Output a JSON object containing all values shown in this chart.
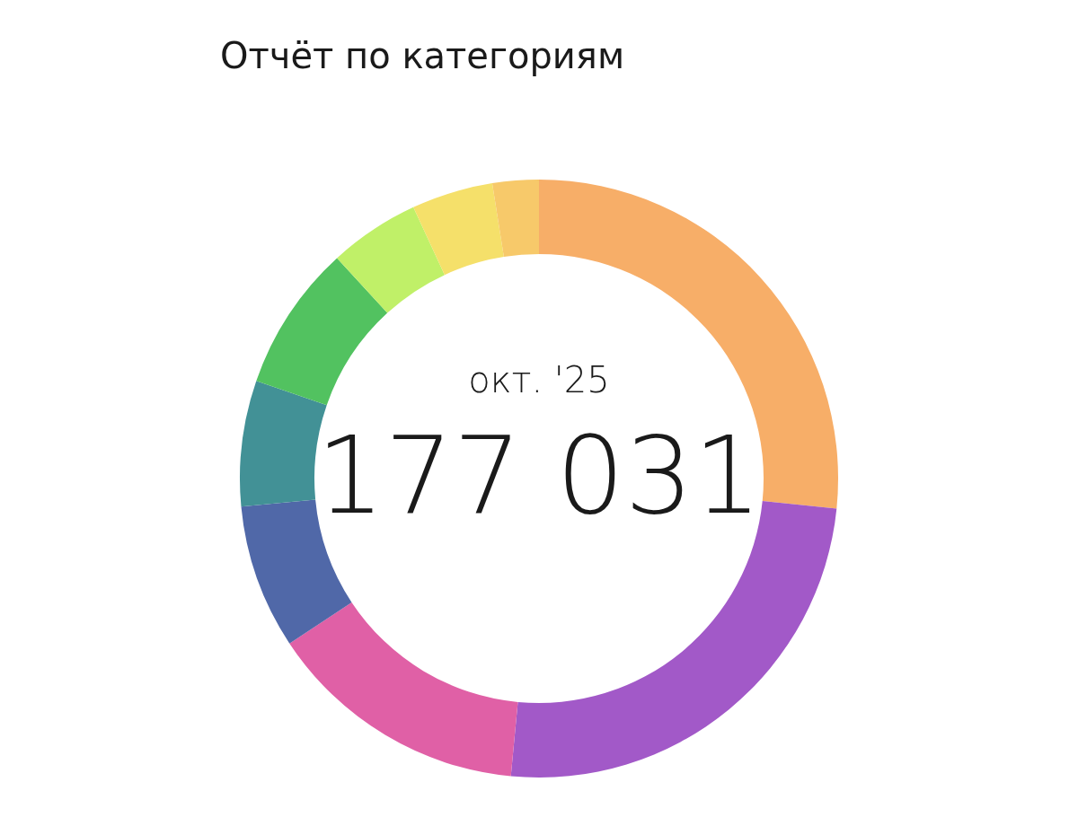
{
  "chart_data": {
    "type": "donut",
    "title": "Отчёт по категориям",
    "annotations": [
      "окт. '25",
      "177 031"
    ],
    "categories": [
      null,
      null,
      null,
      null,
      null,
      null,
      null,
      null,
      null
    ],
    "values": [
      26.6,
      24.9,
      14.2,
      7.8,
      6.8,
      7.9,
      4.9,
      4.4,
      2.5
    ],
    "colors": [
      "#f7ae68",
      "#a259c8",
      "#e060a6",
      "#5068a8",
      "#429196",
      "#52c260",
      "#c0f068",
      "#f5e06a",
      "#f7c96a"
    ]
  }
}
